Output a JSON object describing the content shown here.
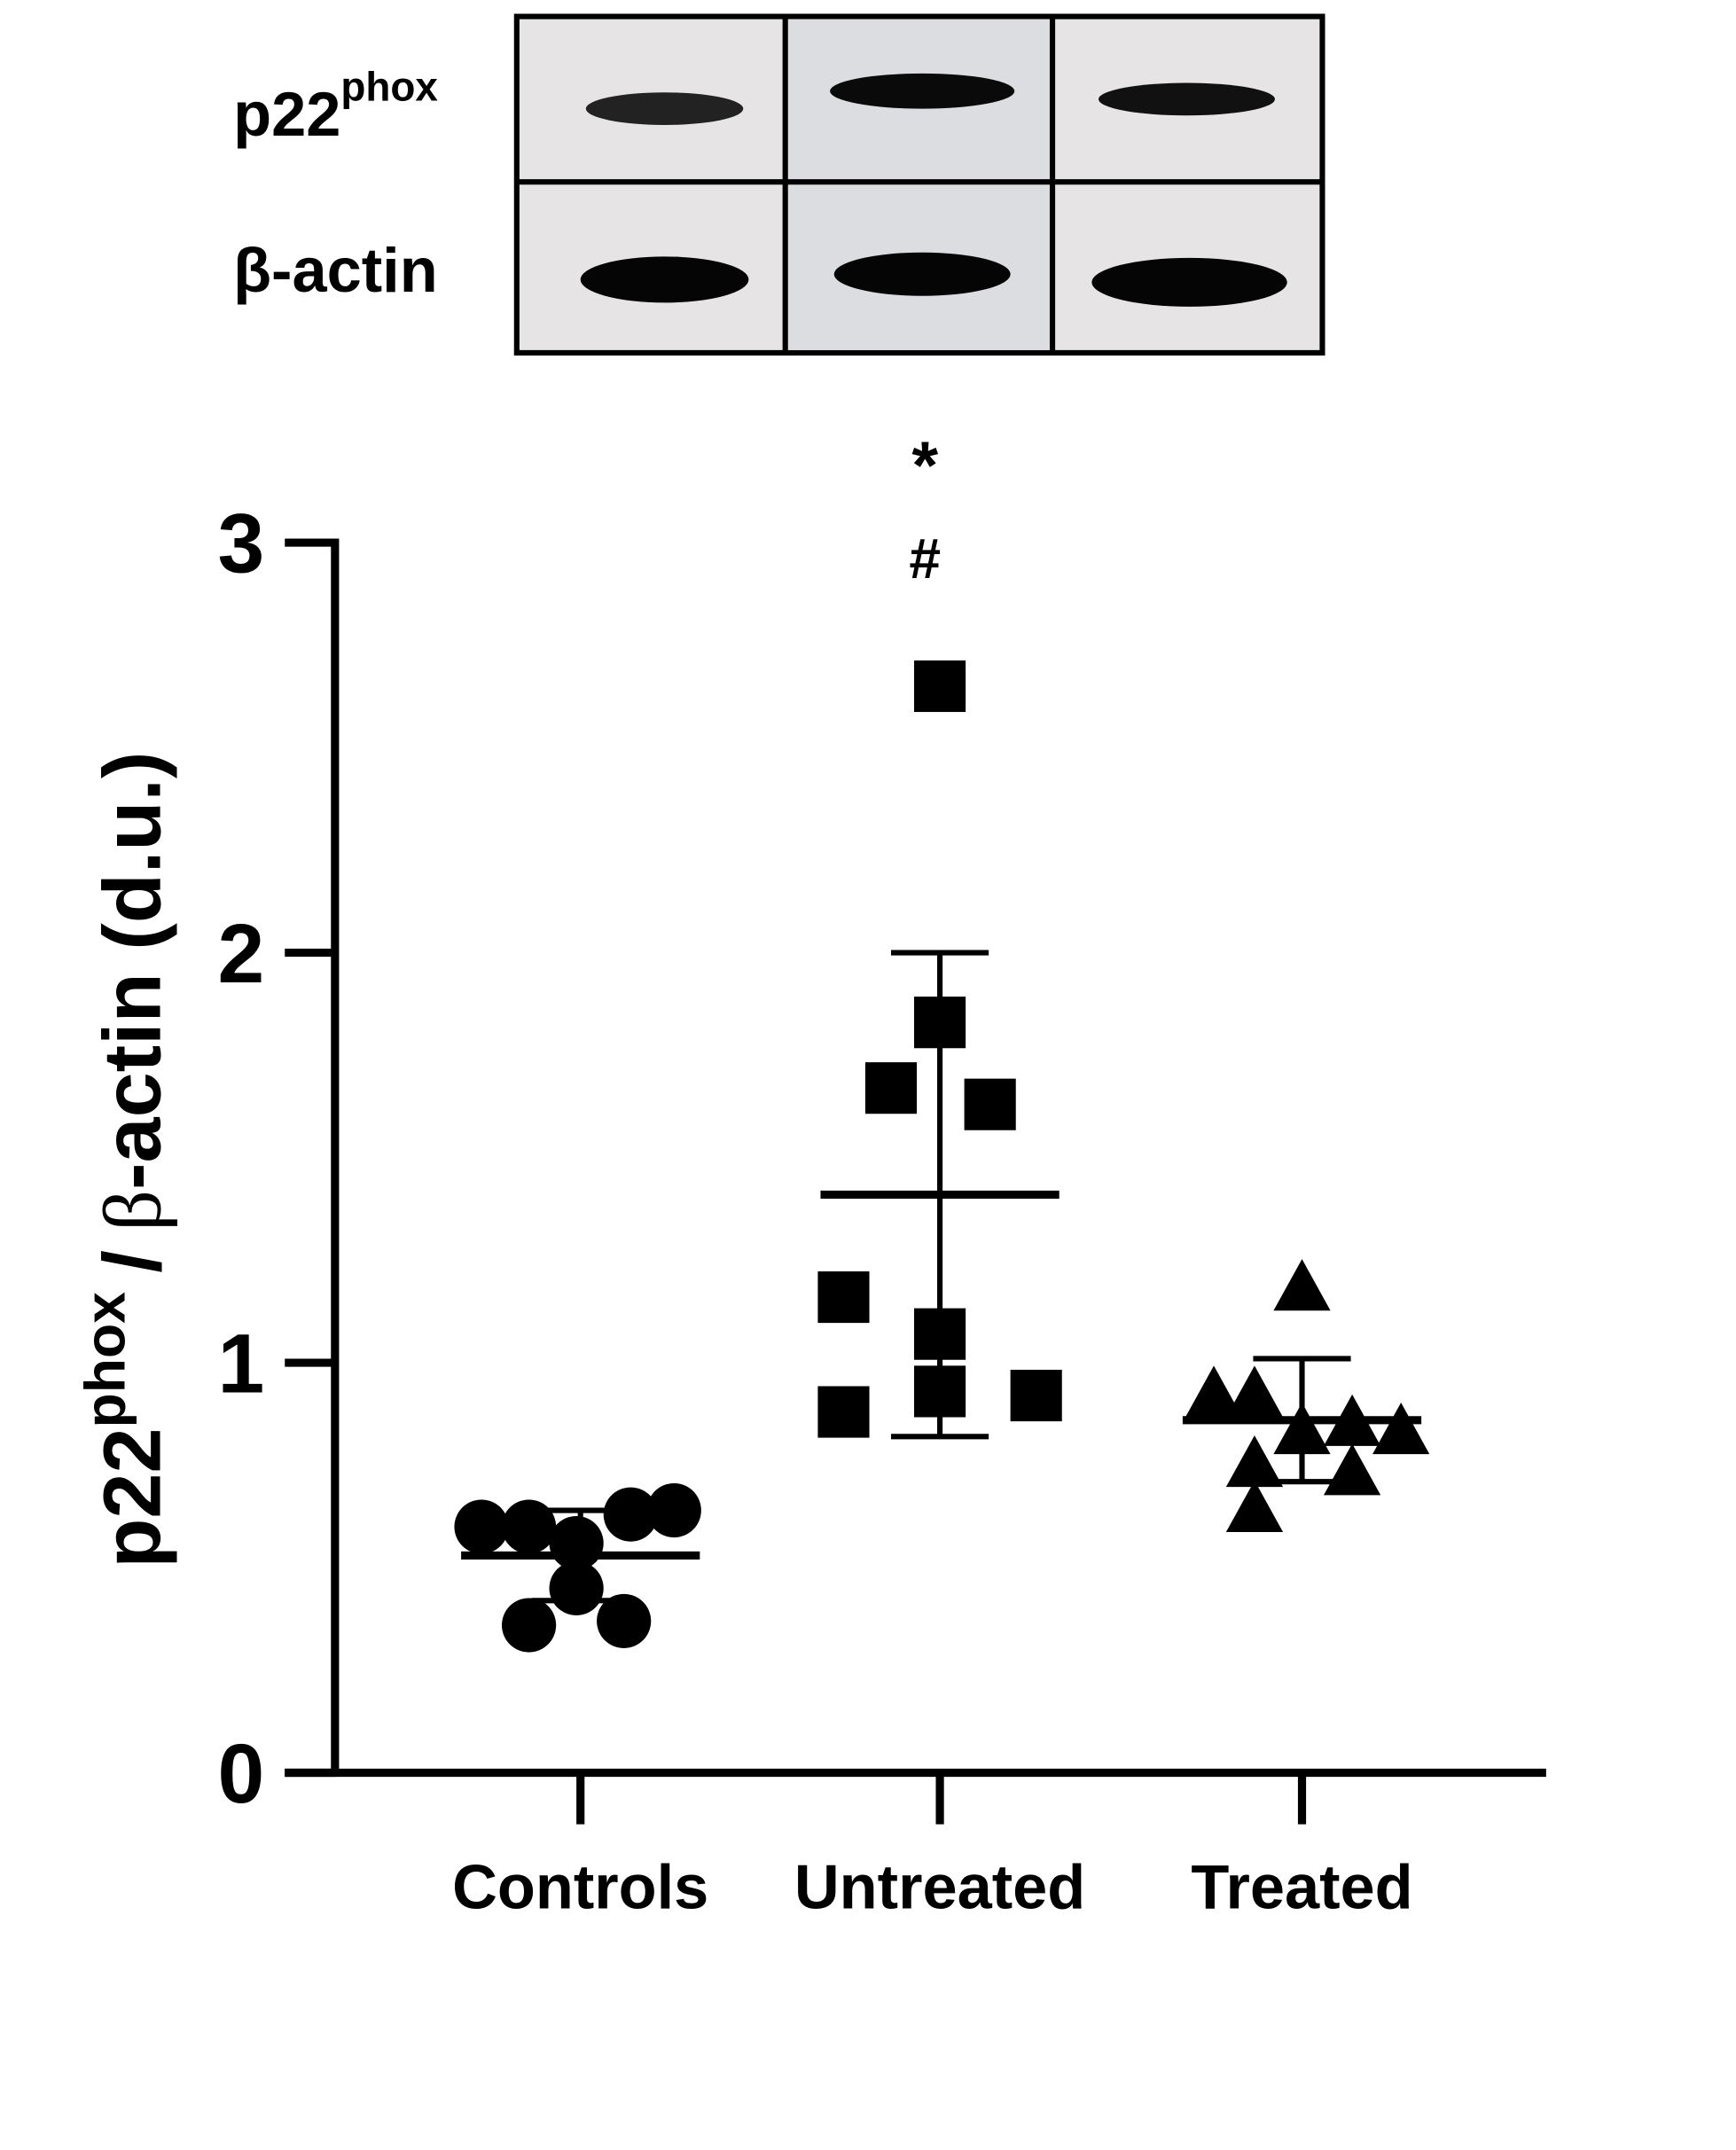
{
  "blot": {
    "rows": [
      {
        "label": "p22",
        "label_sup": "phox"
      },
      {
        "label": "β-actin"
      }
    ]
  },
  "chart_data": {
    "type": "scatter",
    "y_label": {
      "parts": [
        "p22",
        "phox",
        "/",
        "β",
        "-actin (d.u.)"
      ]
    },
    "categories": [
      "Controls",
      "Untreated",
      "Treated"
    ],
    "markers": [
      "circle",
      "square",
      "triangle"
    ],
    "color": "#000000",
    "points": [
      [
        0.6,
        0.6,
        0.63,
        0.64,
        0.56,
        0.45,
        0.36,
        0.37
      ],
      [
        2.65,
        1.83,
        1.67,
        1.63,
        1.16,
        1.07,
        0.93,
        0.92,
        0.88
      ],
      [
        1.18,
        0.92,
        0.92,
        0.83,
        0.85,
        0.83,
        0.75,
        0.73,
        0.64
      ]
    ],
    "means": [
      0.53,
      1.41,
      0.86
    ],
    "sds": [
      0.11,
      0.59,
      0.15
    ],
    "annotations": [
      {
        "text": "*",
        "category": 1
      },
      {
        "text": "#",
        "category": 1
      }
    ],
    "ylim": [
      0,
      3
    ],
    "yticks": [
      0,
      1,
      2,
      3
    ]
  }
}
